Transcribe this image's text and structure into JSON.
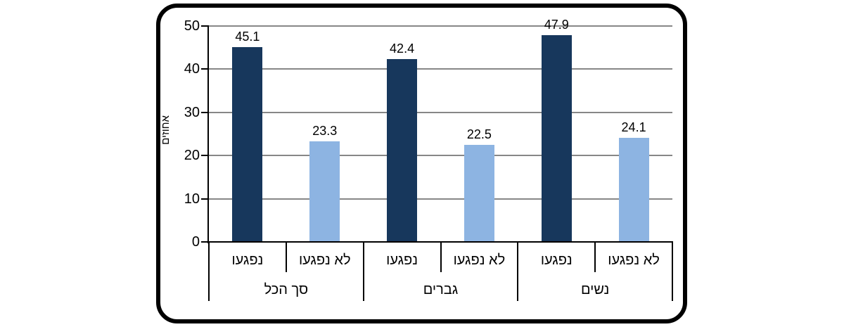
{
  "chart_data": {
    "type": "bar",
    "title": "",
    "xlabel": "",
    "ylabel": "אחוזים",
    "ylim": [
      0,
      50
    ],
    "yticks": [
      0,
      10,
      20,
      30,
      40,
      50
    ],
    "ytick_labels": [
      "0",
      "10",
      "20",
      "30",
      "40",
      "50"
    ],
    "grid": true,
    "legend": "none",
    "groups": [
      {
        "label": "סך הכל",
        "bars": [
          {
            "label": "נפגעו",
            "value": 45.1,
            "value_label": "45.1",
            "series": "נפגעו"
          },
          {
            "label": "לא נפגעו",
            "value": 23.3,
            "value_label": "23.3",
            "series": "לא נפגעו"
          }
        ]
      },
      {
        "label": "גברים",
        "bars": [
          {
            "label": "נפגעו",
            "value": 42.4,
            "value_label": "42.4",
            "series": "נפגעו"
          },
          {
            "label": "לא נפגעו",
            "value": 22.5,
            "value_label": "22.5",
            "series": "לא נפגעו"
          }
        ]
      },
      {
        "label": "נשים",
        "bars": [
          {
            "label": "נפגעו",
            "value": 47.9,
            "value_label": "47.9",
            "series": "נפגעו"
          },
          {
            "label": "לא נפגעו",
            "value": 24.1,
            "value_label": "24.1",
            "series": "לא נפגעו"
          }
        ]
      }
    ],
    "series_colors": {
      "נפגעו": "#17375C",
      "לא נפגעו": "#8DB4E2"
    },
    "colors": {
      "gridline": "#878787",
      "axis": "#000000",
      "text": "#000000",
      "frame_border": "#000000",
      "background": "#ffffff"
    }
  }
}
